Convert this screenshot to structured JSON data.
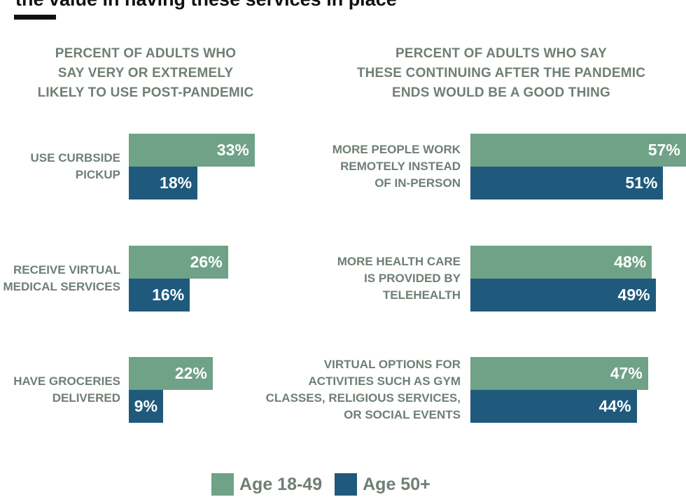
{
  "header": {
    "title": "the value in having these services in place"
  },
  "colors": {
    "age_18_49": "#6fa286",
    "age_50_plus": "#1f5a7c",
    "label_gray": "#6f7f73"
  },
  "chart_data": [
    {
      "type": "bar",
      "orientation": "horizontal",
      "title": "PERCENT OF ADULTS WHO SAY VERY OR EXTREMELY LIKELY TO USE POST-PANDEMIC",
      "title_lines": [
        "PERCENT OF ADULTS WHO",
        "SAY VERY OR EXTREMELY",
        "LIKELY TO USE POST-PANDEMIC"
      ],
      "categories": [
        "USE CURBSIDE PICKUP",
        "RECEIVE VIRTUAL MEDICAL SERVICES",
        "HAVE GROCERIES DELIVERED"
      ],
      "category_lines": [
        [
          "USE CURBSIDE",
          "PICKUP"
        ],
        [
          "RECEIVE VIRTUAL",
          "MEDICAL SERVICES"
        ],
        [
          "HAVE GROCERIES",
          "DELIVERED"
        ]
      ],
      "series": [
        {
          "name": "Age 18-49",
          "values": [
            33,
            26,
            22
          ],
          "labels": [
            "33%",
            "26%",
            "22%"
          ]
        },
        {
          "name": "Age 50+",
          "values": [
            18,
            16,
            9
          ],
          "labels": [
            "18%",
            "16%",
            "9%"
          ]
        }
      ],
      "unit": "%",
      "xlim": [
        0,
        100
      ],
      "grid": false
    },
    {
      "type": "bar",
      "orientation": "horizontal",
      "title": "PERCENT OF ADULTS WHO SAY THESE CONTINUING AFTER THE PANDEMIC ENDS WOULD BE A GOOD THING",
      "title_lines": [
        "PERCENT OF ADULTS WHO SAY",
        "THESE CONTINUING AFTER THE PANDEMIC",
        "ENDS WOULD BE A GOOD THING"
      ],
      "categories": [
        "MORE PEOPLE WORK REMOTELY INSTEAD OF IN-PERSON",
        "MORE HEALTH CARE IS PROVIDED BY TELEHEALTH",
        "VIRTUAL OPTIONS FOR ACTIVITIES SUCH AS GYM CLASSES, RELIGIOUS SERVICES, OR SOCIAL EVENTS"
      ],
      "category_lines": [
        [
          "MORE PEOPLE WORK",
          "REMOTELY INSTEAD",
          "OF IN-PERSON"
        ],
        [
          "MORE HEALTH CARE",
          "IS PROVIDED BY",
          "TELEHEALTH"
        ],
        [
          "VIRTUAL OPTIONS FOR",
          "ACTIVITIES SUCH AS GYM",
          "CLASSES, RELIGIOUS SERVICES,",
          "OR SOCIAL EVENTS"
        ]
      ],
      "series": [
        {
          "name": "Age 18-49",
          "values": [
            57,
            48,
            47
          ],
          "labels": [
            "57%",
            "48%",
            "47%"
          ]
        },
        {
          "name": "Age 50+",
          "values": [
            51,
            49,
            44
          ],
          "labels": [
            "51%",
            "49%",
            "44%"
          ]
        }
      ],
      "unit": "%",
      "xlim": [
        0,
        100
      ],
      "grid": false
    }
  ],
  "legend": {
    "position": "bottom-center",
    "items": [
      {
        "label": "Age 18-49",
        "color": "#6fa286"
      },
      {
        "label": "Age 50+",
        "color": "#1f5a7c"
      }
    ]
  }
}
